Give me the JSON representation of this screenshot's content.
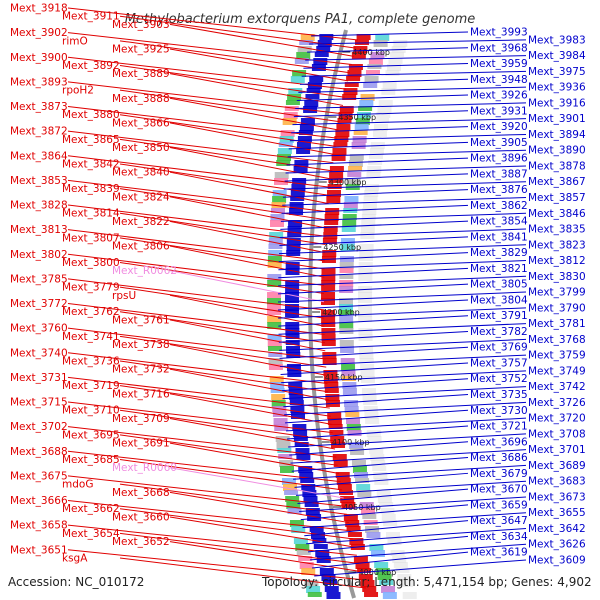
{
  "title": "Methylobacterium extorquens PA1, complete genome",
  "accession_text": "Accession: NC_010172",
  "topology_text": "Topology: circular; Length: 5,471,154 bp; Genes: 4,902",
  "colors": {
    "forward": "#e00000",
    "reverse": "#0000cc",
    "rna": "#f08ce0",
    "backbone": "#999999"
  },
  "scale_ticks": [
    "4400 kbp",
    "4350 kbp",
    "4300 kbp",
    "4250 kbp",
    "4200 kbp",
    "4150 kbp",
    "4100 kbp",
    "4050 kbp",
    "4000 kbp"
  ],
  "left_labels": [
    {
      "text": "Mext_3918",
      "kind": "fwd"
    },
    {
      "text": "Mext_3911",
      "kind": "fwd"
    },
    {
      "text": "Mext_3903",
      "kind": "fwd"
    },
    {
      "text": "Mext_3902",
      "kind": "fwd"
    },
    {
      "text": "rimO",
      "kind": "fwd"
    },
    {
      "text": "Mext_3925",
      "kind": "fwd"
    },
    {
      "text": "Mext_3900",
      "kind": "fwd"
    },
    {
      "text": "Mext_3892",
      "kind": "fwd"
    },
    {
      "text": "Mext_3889",
      "kind": "fwd"
    },
    {
      "text": "Mext_3893",
      "kind": "fwd"
    },
    {
      "text": "rpoH2",
      "kind": "fwd"
    },
    {
      "text": "Mext_3888",
      "kind": "fwd"
    },
    {
      "text": "Mext_3873",
      "kind": "fwd"
    },
    {
      "text": "Mext_3880",
      "kind": "fwd"
    },
    {
      "text": "Mext_3866",
      "kind": "fwd"
    },
    {
      "text": "Mext_3872",
      "kind": "fwd"
    },
    {
      "text": "Mext_3865",
      "kind": "fwd"
    },
    {
      "text": "Mext_3850",
      "kind": "fwd"
    },
    {
      "text": "Mext_3864",
      "kind": "fwd"
    },
    {
      "text": "Mext_3842",
      "kind": "fwd"
    },
    {
      "text": "Mext_3840",
      "kind": "fwd"
    },
    {
      "text": "Mext_3853",
      "kind": "fwd"
    },
    {
      "text": "Mext_3839",
      "kind": "fwd"
    },
    {
      "text": "Mext_3824",
      "kind": "fwd"
    },
    {
      "text": "Mext_3828",
      "kind": "fwd"
    },
    {
      "text": "Mext_3814",
      "kind": "fwd"
    },
    {
      "text": "Mext_3822",
      "kind": "fwd"
    },
    {
      "text": "Mext_3813",
      "kind": "fwd"
    },
    {
      "text": "Mext_3807",
      "kind": "fwd"
    },
    {
      "text": "Mext_3806",
      "kind": "fwd"
    },
    {
      "text": "Mext_3802",
      "kind": "fwd"
    },
    {
      "text": "Mext_3800",
      "kind": "fwd"
    },
    {
      "text": "Mext_R0062",
      "kind": "rna"
    },
    {
      "text": "Mext_3785",
      "kind": "fwd"
    },
    {
      "text": "Mext_3779",
      "kind": "fwd"
    },
    {
      "text": "rpsU",
      "kind": "fwd"
    },
    {
      "text": "Mext_3772",
      "kind": "fwd"
    },
    {
      "text": "Mext_3762",
      "kind": "fwd"
    },
    {
      "text": "Mext_3761",
      "kind": "fwd"
    },
    {
      "text": "Mext_3760",
      "kind": "fwd"
    },
    {
      "text": "Mext_3741",
      "kind": "fwd"
    },
    {
      "text": "Mext_3738",
      "kind": "fwd"
    },
    {
      "text": "Mext_3740",
      "kind": "fwd"
    },
    {
      "text": "Mext_3736",
      "kind": "fwd"
    },
    {
      "text": "Mext_3732",
      "kind": "fwd"
    },
    {
      "text": "Mext_3731",
      "kind": "fwd"
    },
    {
      "text": "Mext_3719",
      "kind": "fwd"
    },
    {
      "text": "Mext_3716",
      "kind": "fwd"
    },
    {
      "text": "Mext_3715",
      "kind": "fwd"
    },
    {
      "text": "Mext_3710",
      "kind": "fwd"
    },
    {
      "text": "Mext_3709",
      "kind": "fwd"
    },
    {
      "text": "Mext_3702",
      "kind": "fwd"
    },
    {
      "text": "Mext_3695",
      "kind": "fwd"
    },
    {
      "text": "Mext_3691",
      "kind": "fwd"
    },
    {
      "text": "Mext_3688",
      "kind": "fwd"
    },
    {
      "text": "Mext_3685",
      "kind": "fwd"
    },
    {
      "text": "Mext_R0060",
      "kind": "rna"
    },
    {
      "text": "Mext_3675",
      "kind": "fwd"
    },
    {
      "text": "mdoG",
      "kind": "fwd"
    },
    {
      "text": "Mext_3668",
      "kind": "fwd"
    },
    {
      "text": "Mext_3666",
      "kind": "fwd"
    },
    {
      "text": "Mext_3662",
      "kind": "fwd"
    },
    {
      "text": "Mext_3660",
      "kind": "fwd"
    },
    {
      "text": "Mext_3658",
      "kind": "fwd"
    },
    {
      "text": "Mext_3654",
      "kind": "fwd"
    },
    {
      "text": "Mext_3652",
      "kind": "fwd"
    },
    {
      "text": "Mext_3651",
      "kind": "fwd"
    },
    {
      "text": "ksgA",
      "kind": "fwd"
    }
  ],
  "right_labels": [
    {
      "text": "Mext_3993"
    },
    {
      "text": "Mext_3983"
    },
    {
      "text": "Mext_3968"
    },
    {
      "text": "Mext_3984"
    },
    {
      "text": "Mext_3959"
    },
    {
      "text": "Mext_3975"
    },
    {
      "text": "Mext_3948"
    },
    {
      "text": "Mext_3936"
    },
    {
      "text": "Mext_3926"
    },
    {
      "text": "Mext_3916"
    },
    {
      "text": "Mext_3931"
    },
    {
      "text": "Mext_3901"
    },
    {
      "text": "Mext_3920"
    },
    {
      "text": "Mext_3894"
    },
    {
      "text": "Mext_3905"
    },
    {
      "text": "Mext_3890"
    },
    {
      "text": "Mext_3896"
    },
    {
      "text": "Mext_3878"
    },
    {
      "text": "Mext_3887"
    },
    {
      "text": "Mext_3867"
    },
    {
      "text": "Mext_3876"
    },
    {
      "text": "Mext_3857"
    },
    {
      "text": "Mext_3862"
    },
    {
      "text": "Mext_3846"
    },
    {
      "text": "Mext_3854"
    },
    {
      "text": "Mext_3835"
    },
    {
      "text": "Mext_3841"
    },
    {
      "text": "Mext_3823"
    },
    {
      "text": "Mext_3829"
    },
    {
      "text": "Mext_3812"
    },
    {
      "text": "Mext_3821"
    },
    {
      "text": "Mext_3830"
    },
    {
      "text": "Mext_3805"
    },
    {
      "text": "Mext_3799"
    },
    {
      "text": "Mext_3804"
    },
    {
      "text": "Mext_3790"
    },
    {
      "text": "Mext_3791"
    },
    {
      "text": "Mext_3781"
    },
    {
      "text": "Mext_3782"
    },
    {
      "text": "Mext_3768"
    },
    {
      "text": "Mext_3769"
    },
    {
      "text": "Mext_3759"
    },
    {
      "text": "Mext_3757"
    },
    {
      "text": "Mext_3749"
    },
    {
      "text": "Mext_3752"
    },
    {
      "text": "Mext_3742"
    },
    {
      "text": "Mext_3735"
    },
    {
      "text": "Mext_3726"
    },
    {
      "text": "Mext_3730"
    },
    {
      "text": "Mext_3720"
    },
    {
      "text": "Mext_3721"
    },
    {
      "text": "Mext_3708"
    },
    {
      "text": "Mext_3696"
    },
    {
      "text": "Mext_3701"
    },
    {
      "text": "Mext_3686"
    },
    {
      "text": "Mext_3689"
    },
    {
      "text": "Mext_3679"
    },
    {
      "text": "Mext_3683"
    },
    {
      "text": "Mext_3670"
    },
    {
      "text": "Mext_3673"
    },
    {
      "text": "Mext_3659"
    },
    {
      "text": "Mext_3655"
    },
    {
      "text": "Mext_3647"
    },
    {
      "text": "Mext_3642"
    },
    {
      "text": "Mext_3634"
    },
    {
      "text": "Mext_3626"
    },
    {
      "text": "Mext_3619"
    },
    {
      "text": "Mext_3609"
    }
  ]
}
